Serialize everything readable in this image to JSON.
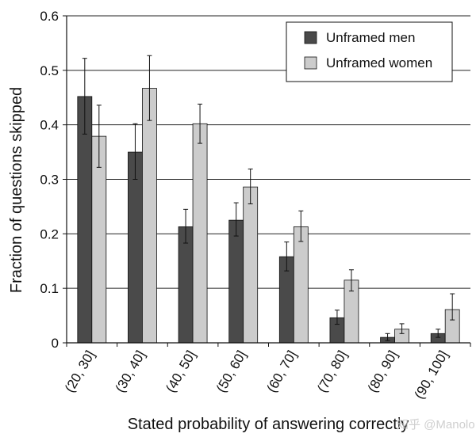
{
  "chart_data": {
    "type": "bar",
    "categories": [
      "(20, 30]",
      "(30, 40]",
      "(40, 50]",
      "(50, 60]",
      "(60, 70]",
      "(70, 80]",
      "(80, 90]",
      "(90, 100]"
    ],
    "series": [
      {
        "name": "Unframed men",
        "color": "#4a4a4a",
        "values": [
          0.452,
          0.35,
          0.213,
          0.225,
          0.158,
          0.046,
          0.01,
          0.017
        ],
        "err_low": [
          0.383,
          0.3,
          0.183,
          0.196,
          0.132,
          0.034,
          0.004,
          0.01
        ],
        "err_high": [
          0.522,
          0.402,
          0.245,
          0.257,
          0.185,
          0.06,
          0.017,
          0.025
        ]
      },
      {
        "name": "Unframed women",
        "color": "#cccccc",
        "values": [
          0.379,
          0.467,
          0.402,
          0.286,
          0.213,
          0.115,
          0.025,
          0.061
        ],
        "err_low": [
          0.322,
          0.408,
          0.366,
          0.255,
          0.186,
          0.095,
          0.017,
          0.042
        ],
        "err_high": [
          0.436,
          0.527,
          0.438,
          0.319,
          0.242,
          0.134,
          0.035,
          0.09
        ]
      }
    ],
    "xlabel": "Stated probability of answering correctly",
    "ylabel": "Fraction of questions skipped",
    "ylim": [
      0,
      0.6
    ],
    "yticks": [
      0,
      0.1,
      0.2,
      0.3,
      0.4,
      0.5,
      0.6
    ],
    "ytick_labels": [
      "0",
      "0.1",
      "0.2",
      "0.3",
      "0.4",
      "0.5",
      "0.6"
    ],
    "grid": true,
    "legend_position": "top-right"
  },
  "watermark": "知乎 @Manolo"
}
